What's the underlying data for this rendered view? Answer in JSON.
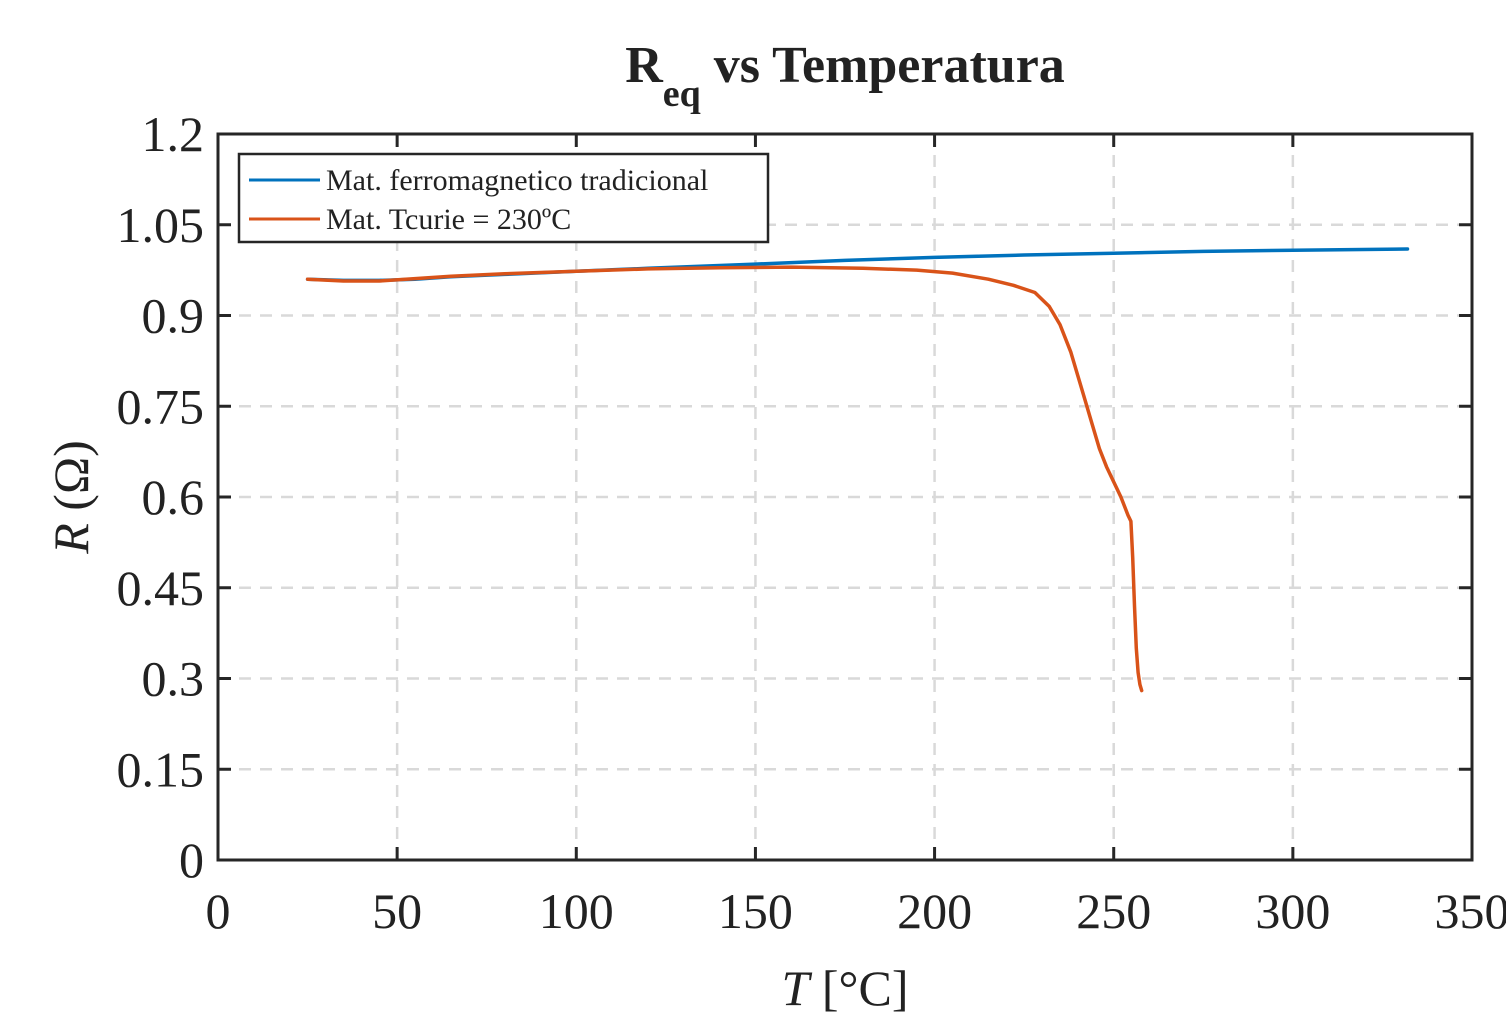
{
  "chart_data": {
    "type": "line",
    "title": {
      "main": "R",
      "subscript": "eq",
      "rest": " vs Temperatura"
    },
    "xlabel": {
      "symbol": "T",
      "unit": " [°C]"
    },
    "ylabel": {
      "symbol": "R",
      "unit": " (Ω)"
    },
    "xlim": [
      0,
      350
    ],
    "ylim": [
      0,
      1.2
    ],
    "xticks": [
      0,
      50,
      100,
      150,
      200,
      250,
      300,
      350
    ],
    "xtick_labels": [
      "0",
      "50",
      "100",
      "150",
      "200",
      "250",
      "300",
      "350"
    ],
    "yticks": [
      0,
      0.15,
      0.3,
      0.45,
      0.6,
      0.75,
      0.9,
      1.05,
      1.2
    ],
    "ytick_labels": [
      "0",
      "0.15",
      "0.3",
      "0.45",
      "0.6",
      "0.75",
      "0.9",
      "1.05",
      "1.2"
    ],
    "grid": true,
    "legend_position": "top-left",
    "series": [
      {
        "name": "Mat. ferromagnetico tradicional",
        "color": "#0072BD",
        "x": [
          25,
          35,
          45,
          55,
          65,
          80,
          100,
          120,
          150,
          175,
          200,
          225,
          250,
          275,
          300,
          332
        ],
        "y": [
          0.96,
          0.958,
          0.958,
          0.96,
          0.964,
          0.968,
          0.973,
          0.978,
          0.985,
          0.991,
          0.996,
          1.0,
          1.003,
          1.006,
          1.008,
          1.01
        ]
      },
      {
        "name": "Mat. Tcurie = 230ºC",
        "color": "#D95319",
        "x": [
          25,
          35,
          45,
          55,
          65,
          80,
          100,
          120,
          140,
          160,
          180,
          195,
          205,
          215,
          222,
          228,
          232,
          235,
          238,
          240,
          242,
          244,
          246,
          248,
          250,
          252,
          254,
          254.8,
          255.3,
          255.8,
          256.3,
          256.8,
          257.3,
          257.8
        ],
        "y": [
          0.96,
          0.957,
          0.957,
          0.961,
          0.965,
          0.969,
          0.973,
          0.977,
          0.979,
          0.98,
          0.978,
          0.975,
          0.97,
          0.96,
          0.95,
          0.938,
          0.915,
          0.885,
          0.84,
          0.8,
          0.76,
          0.72,
          0.68,
          0.65,
          0.625,
          0.6,
          0.57,
          0.56,
          0.5,
          0.42,
          0.35,
          0.31,
          0.29,
          0.28
        ]
      }
    ]
  }
}
